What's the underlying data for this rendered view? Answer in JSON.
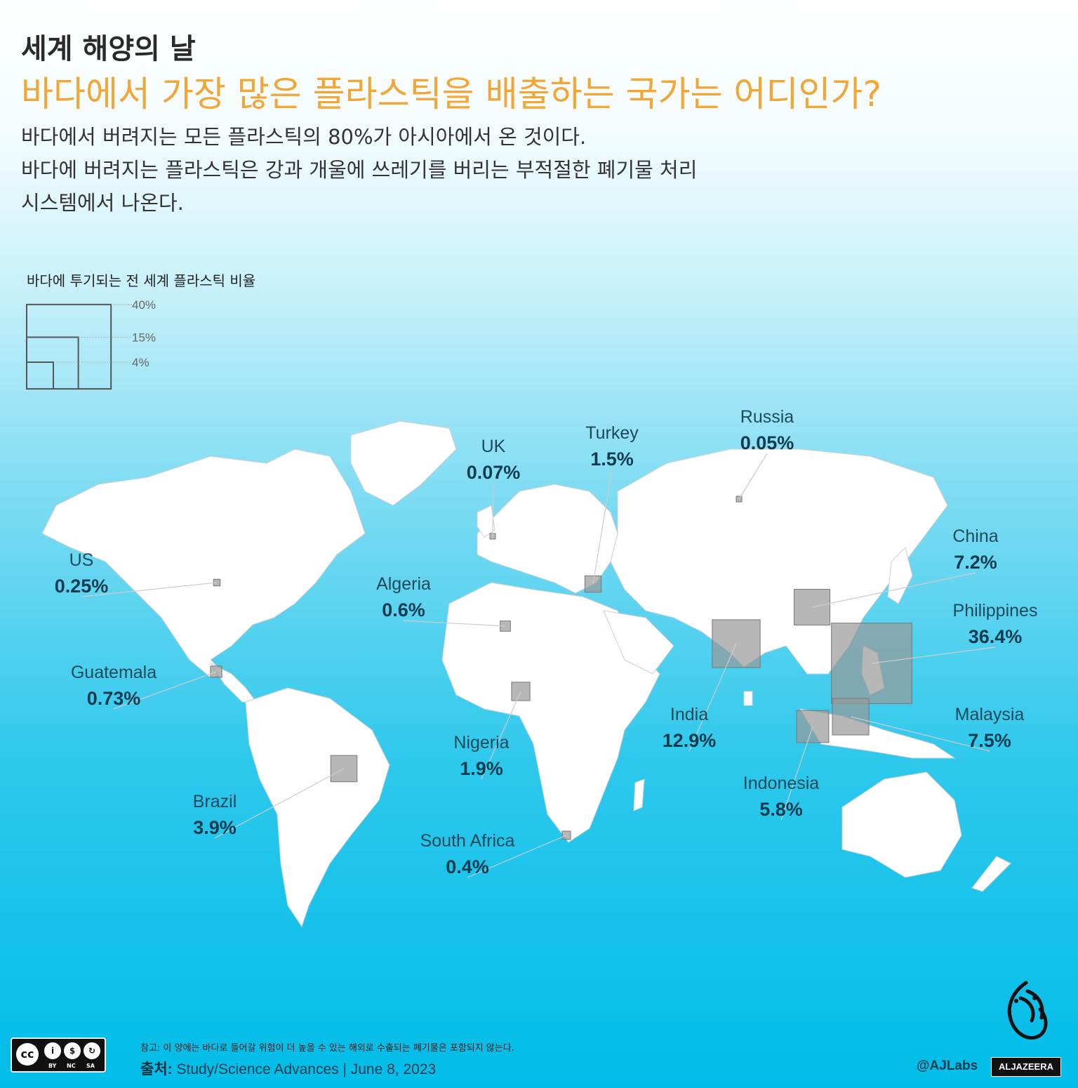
{
  "header": {
    "title": "세계 해양의 날",
    "question": "바다에서 가장 많은 플라스틱을 배출하는 국가는 어디인가?",
    "sub1": "바다에서 버려지는 모든 플라스틱의 80%가 아시아에서 온 것이다.",
    "sub2": "바다에 버려지는 플라스틱은 강과 개울에 쓰레기를 버리는 부적절한 폐기물 처리",
    "sub3": "시스템에서 나온다."
  },
  "legend": {
    "title": "바다에 투기되는 전 세계 플라스틱 비율",
    "levels": [
      {
        "label": "40%",
        "pct": 40
      },
      {
        "label": "15%",
        "pct": 15
      },
      {
        "label": "4%",
        "pct": 4
      }
    ]
  },
  "countries": [
    {
      "name": "Russia",
      "value": "0.05%",
      "pct": 0.05
    },
    {
      "name": "Turkey",
      "value": "1.5%",
      "pct": 1.5
    },
    {
      "name": "UK",
      "value": "0.07%",
      "pct": 0.07
    },
    {
      "name": "China",
      "value": "7.2%",
      "pct": 7.2
    },
    {
      "name": "US",
      "value": "0.25%",
      "pct": 0.25
    },
    {
      "name": "Algeria",
      "value": "0.6%",
      "pct": 0.6
    },
    {
      "name": "Philippines",
      "value": "36.4%",
      "pct": 36.4
    },
    {
      "name": "Guatemala",
      "value": "0.73%",
      "pct": 0.73
    },
    {
      "name": "India",
      "value": "12.9%",
      "pct": 12.9
    },
    {
      "name": "Malaysia",
      "value": "7.5%",
      "pct": 7.5
    },
    {
      "name": "Nigeria",
      "value": "1.9%",
      "pct": 1.9
    },
    {
      "name": "Indonesia",
      "value": "5.8%",
      "pct": 5.8
    },
    {
      "name": "Brazil",
      "value": "3.9%",
      "pct": 3.9
    },
    {
      "name": "South Africa",
      "value": "0.4%",
      "pct": 0.4
    }
  ],
  "footer": {
    "note": "참고: 이 양에는 바다로 들어갈 위험이 더 높을 수 있는 해외로 수출되는 폐기물은 포함되지 않는다.",
    "source_label": "출처:",
    "source": "Study/Science Advances | June 8, 2023",
    "handle": "@AJLabs",
    "brand": "ALJAZEERA"
  },
  "colors": {
    "ocean_top": "#ffffff",
    "ocean_bottom": "#00bde8",
    "land": "#ffffff",
    "square": "#999999",
    "accent": "#f2a636",
    "label": "#0d3c50"
  }
}
